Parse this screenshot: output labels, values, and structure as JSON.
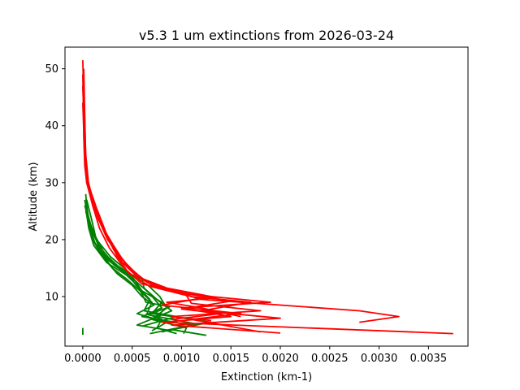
{
  "chart_data": {
    "type": "line",
    "title": "v5.3 1 um extinctions from 2026-03-24",
    "xlabel": "Extinction (km-1)",
    "ylabel": "Altitude (km)",
    "xlim": [
      -0.00018,
      0.0039
    ],
    "ylim": [
      1.3,
      53.8
    ],
    "xticks": [
      0.0,
      0.0005,
      0.001,
      0.0015,
      0.002,
      0.0025,
      0.003,
      0.0035
    ],
    "xtick_labels": [
      "0.0000",
      "0.0005",
      "0.0010",
      "0.0015",
      "0.0020",
      "0.0025",
      "0.0030",
      "0.0035"
    ],
    "yticks": [
      10,
      20,
      30,
      40,
      50
    ],
    "ytick_labels": [
      "10",
      "20",
      "30",
      "40",
      "50"
    ],
    "grid": false,
    "legend": "none",
    "series": [
      {
        "color": "#008000",
        "points": [
          [
            3e-05,
            28
          ],
          [
            5e-05,
            24
          ],
          [
            8e-05,
            21
          ],
          [
            0.00015,
            18.5
          ],
          [
            0.0003,
            15
          ],
          [
            0.00045,
            13
          ],
          [
            0.00058,
            11
          ],
          [
            0.0007,
            9
          ],
          [
            0.00065,
            7
          ],
          [
            0.0008,
            6
          ],
          [
            0.00075,
            4.5
          ],
          [
            0.00095,
            3.5
          ]
        ]
      },
      {
        "color": "#008000",
        "points": [
          [
            2e-05,
            27
          ],
          [
            6e-05,
            23
          ],
          [
            0.0001,
            20
          ],
          [
            0.0002,
            17
          ],
          [
            0.00035,
            14
          ],
          [
            0.0005,
            12
          ],
          [
            0.0006,
            10
          ],
          [
            0.00072,
            8.5
          ],
          [
            0.00055,
            7
          ],
          [
            0.00085,
            5.5
          ],
          [
            0.0007,
            4
          ]
        ]
      },
      {
        "color": "#008000",
        "points": [
          [
            4e-05,
            26
          ],
          [
            7e-05,
            22.5
          ],
          [
            0.00012,
            19.5
          ],
          [
            0.00025,
            16.5
          ],
          [
            0.0004,
            14.5
          ],
          [
            0.00055,
            12.5
          ],
          [
            0.00068,
            10.5
          ],
          [
            0.0008,
            8
          ],
          [
            0.0006,
            6.5
          ],
          [
            0.0011,
            5
          ],
          [
            0.00068,
            3.5
          ]
        ]
      },
      {
        "color": "#008000",
        "points": [
          [
            3e-05,
            25
          ],
          [
            8e-05,
            22
          ],
          [
            0.00016,
            19
          ],
          [
            0.0003,
            16
          ],
          [
            0.00048,
            14
          ],
          [
            0.0006,
            13
          ],
          [
            0.00062,
            11.5
          ],
          [
            0.00075,
            9.5
          ],
          [
            0.0009,
            7.5
          ],
          [
            0.00055,
            5
          ],
          [
            0.0009,
            4
          ]
        ]
      },
      {
        "color": "#008000",
        "points": [
          [
            5e-05,
            24.5
          ],
          [
            0.0001,
            21.5
          ],
          [
            0.00018,
            18
          ],
          [
            0.00032,
            15.5
          ],
          [
            0.0005,
            13.5
          ],
          [
            0.0006,
            11
          ],
          [
            0.0008,
            9
          ],
          [
            0.0007,
            7
          ],
          [
            0.0013,
            5.5
          ],
          [
            0.0009,
            4.2
          ],
          [
            0.00125,
            3.2
          ]
        ]
      },
      {
        "color": "#008000",
        "points": [
          [
            2e-05,
            26
          ],
          [
            7e-05,
            23
          ],
          [
            0.00014,
            20
          ],
          [
            0.00028,
            17
          ],
          [
            0.00042,
            15
          ],
          [
            0.00054,
            12
          ],
          [
            0.00068,
            9.5
          ],
          [
            0.00062,
            7.5
          ],
          [
            0.00095,
            6.5
          ],
          [
            0.0006,
            4.8
          ]
        ]
      },
      {
        "color": "#008000",
        "points": [
          [
            4e-05,
            27
          ],
          [
            9e-05,
            23.5
          ],
          [
            0.00013,
            20.5
          ],
          [
            0.00022,
            17.5
          ],
          [
            0.00038,
            15
          ],
          [
            0.00052,
            13.5
          ],
          [
            0.00066,
            12
          ],
          [
            0.00078,
            10
          ],
          [
            0.00085,
            8
          ],
          [
            0.0007,
            6
          ],
          [
            0.00105,
            4.5
          ],
          [
            0.00102,
            3.5
          ]
        ]
      },
      {
        "color": "#008000",
        "points": [
          [
            3e-05,
            25.5
          ],
          [
            6e-05,
            22
          ],
          [
            0.00011,
            19
          ],
          [
            0.00024,
            16
          ],
          [
            0.00044,
            13.8
          ],
          [
            0.00056,
            11.8
          ],
          [
            0.00064,
            9
          ],
          [
            0.00088,
            8.2
          ],
          [
            0.00066,
            6.8
          ],
          [
            0.00115,
            5.2
          ],
          [
            0.0008,
            3.8
          ]
        ]
      },
      {
        "color": "#008000",
        "points": [
          [
            0.0,
            4.5
          ],
          [
            0.0,
            3.3
          ]
        ]
      },
      {
        "color": "#ff0000",
        "points": [
          [
            0.0,
            51.5
          ],
          [
            1e-05,
            45
          ],
          [
            1e-05,
            38
          ],
          [
            2e-05,
            33
          ],
          [
            4e-05,
            30
          ],
          [
            0.0001,
            27
          ],
          [
            0.00015,
            24
          ],
          [
            0.00025,
            20
          ],
          [
            0.0004,
            16.5
          ],
          [
            0.0006,
            13
          ],
          [
            0.0009,
            11
          ],
          [
            0.0012,
            9.5
          ],
          [
            0.0028,
            7.5
          ],
          [
            0.0032,
            6.5
          ],
          [
            0.0028,
            5.5
          ]
        ]
      },
      {
        "color": "#ff0000",
        "points": [
          [
            1e-05,
            50
          ],
          [
            2e-05,
            42
          ],
          [
            3e-05,
            34
          ],
          [
            6e-05,
            29
          ],
          [
            0.00012,
            26
          ],
          [
            0.0002,
            22
          ],
          [
            0.00032,
            18
          ],
          [
            0.00048,
            15
          ],
          [
            0.00065,
            12.5
          ],
          [
            0.001,
            10.5
          ],
          [
            0.0019,
            9
          ],
          [
            0.001,
            8
          ],
          [
            0.0015,
            6.5
          ],
          [
            0.0008,
            5.5
          ],
          [
            0.00375,
            3.5
          ]
        ]
      },
      {
        "color": "#ff0000",
        "points": [
          [
            0.0,
            49
          ],
          [
            1e-05,
            40
          ],
          [
            3e-05,
            32
          ],
          [
            7e-05,
            28.5
          ],
          [
            0.00013,
            25
          ],
          [
            0.00022,
            21.5
          ],
          [
            0.00036,
            17.5
          ],
          [
            0.0005,
            14.5
          ],
          [
            0.0007,
            12
          ],
          [
            0.0011,
            10
          ],
          [
            0.0017,
            9
          ],
          [
            0.0012,
            7.5
          ],
          [
            0.002,
            6.2
          ],
          [
            0.0009,
            5
          ],
          [
            0.002,
            3.6
          ]
        ]
      },
      {
        "color": "#ff0000",
        "points": [
          [
            1e-05,
            48
          ],
          [
            2e-05,
            37
          ],
          [
            4e-05,
            31
          ],
          [
            9e-05,
            27.5
          ],
          [
            0.00016,
            23.5
          ],
          [
            0.00028,
            19.5
          ],
          [
            0.0004,
            16
          ],
          [
            0.00055,
            13.5
          ],
          [
            0.00085,
            11.5
          ],
          [
            0.0013,
            10
          ],
          [
            0.0008,
            8.5
          ],
          [
            0.0016,
            7
          ],
          [
            0.0011,
            6
          ],
          [
            0.0018,
            3.8
          ]
        ]
      },
      {
        "color": "#ff0000",
        "points": [
          [
            0.0,
            47
          ],
          [
            2e-05,
            36
          ],
          [
            5e-05,
            30.5
          ],
          [
            0.00011,
            26.5
          ],
          [
            0.00019,
            22.5
          ],
          [
            0.00031,
            19
          ],
          [
            0.00044,
            15.5
          ],
          [
            0.00062,
            12.8
          ],
          [
            0.00095,
            10.8
          ],
          [
            0.0015,
            9.2
          ],
          [
            0.001,
            7.8
          ],
          [
            0.0014,
            7
          ],
          [
            0.0009,
            6
          ]
        ]
      },
      {
        "color": "#ff0000",
        "points": [
          [
            1e-05,
            46
          ],
          [
            3e-05,
            35
          ],
          [
            6e-05,
            29.5
          ],
          [
            0.00014,
            25.5
          ],
          [
            0.00024,
            21
          ],
          [
            0.00035,
            17
          ],
          [
            0.00047,
            14
          ],
          [
            0.00068,
            11.8
          ],
          [
            0.00105,
            10.2
          ],
          [
            0.0011,
            8.8
          ],
          [
            0.0018,
            7.5
          ],
          [
            0.0009,
            6.5
          ],
          [
            0.0013,
            5.8
          ]
        ]
      },
      {
        "color": "#ff0000",
        "points": [
          [
            0.0,
            44
          ],
          [
            2e-05,
            34
          ],
          [
            4e-05,
            30
          ],
          [
            0.0001,
            26
          ],
          [
            0.00017,
            22
          ],
          [
            0.00027,
            18.5
          ],
          [
            0.00042,
            15
          ],
          [
            0.0006,
            12.2
          ],
          [
            0.0009,
            11.2
          ],
          [
            0.00135,
            9.8
          ],
          [
            0.00085,
            9
          ],
          [
            0.0012,
            8
          ],
          [
            0.0016,
            6.5
          ]
        ]
      }
    ]
  }
}
